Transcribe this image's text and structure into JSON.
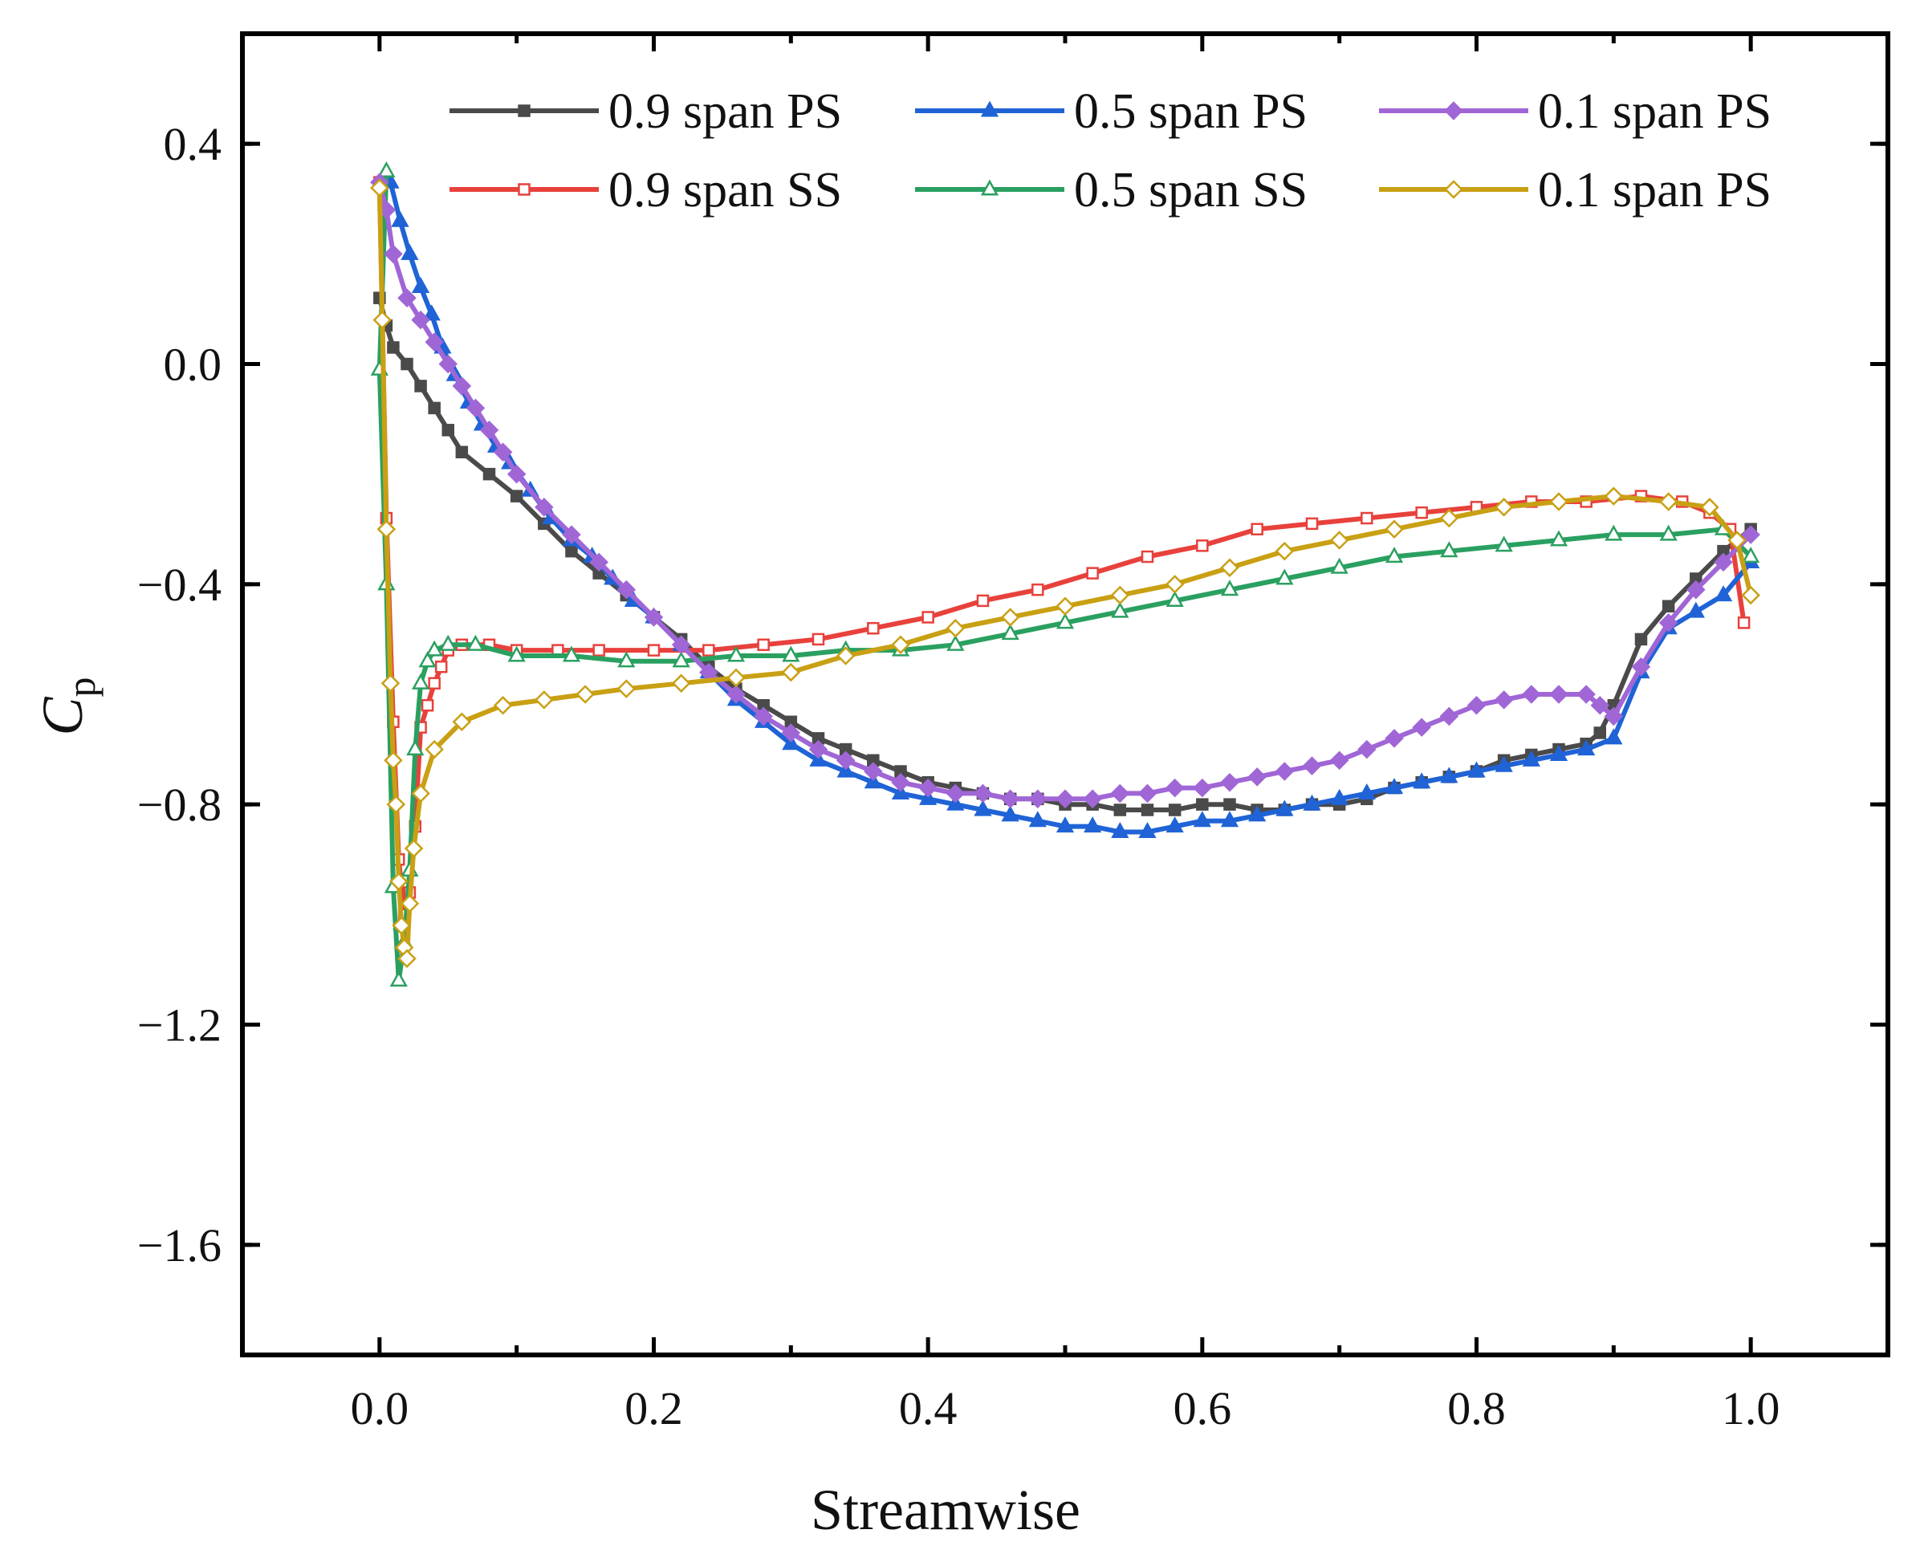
{
  "chart_data": {
    "type": "line",
    "xlabel": "Streamwise",
    "ylabel": "C",
    "ylabel_sub": "p",
    "xlim": [
      -0.1,
      1.1
    ],
    "ylim": [
      -1.8,
      0.6
    ],
    "xticks": [
      0.0,
      0.2,
      0.4,
      0.6,
      0.8,
      1.0
    ],
    "xtick_labels": [
      "0.0",
      "0.2",
      "0.4",
      "0.6",
      "0.8",
      "1.0"
    ],
    "yticks": [
      -1.6,
      -1.2,
      -0.8,
      -0.4,
      0.0,
      0.4
    ],
    "ytick_labels": [
      "−1.6",
      "−1.2",
      "−0.8",
      "−0.4",
      "0.0",
      "0.4"
    ],
    "grid": false,
    "legend_position": "top-right",
    "series": [
      {
        "name": "0.9 span PS",
        "color": "#4a4a4a",
        "marker": "square",
        "filled": true,
        "x": [
          0.0,
          0.005,
          0.01,
          0.02,
          0.03,
          0.04,
          0.05,
          0.06,
          0.08,
          0.1,
          0.12,
          0.14,
          0.16,
          0.18,
          0.2,
          0.22,
          0.24,
          0.26,
          0.28,
          0.3,
          0.32,
          0.34,
          0.36,
          0.38,
          0.4,
          0.42,
          0.44,
          0.46,
          0.48,
          0.5,
          0.52,
          0.54,
          0.56,
          0.58,
          0.6,
          0.62,
          0.64,
          0.66,
          0.68,
          0.7,
          0.72,
          0.74,
          0.76,
          0.78,
          0.8,
          0.82,
          0.84,
          0.86,
          0.88,
          0.89,
          0.9,
          0.92,
          0.94,
          0.96,
          0.98,
          1.0
        ],
        "y": [
          0.12,
          0.07,
          0.03,
          0.0,
          -0.04,
          -0.08,
          -0.12,
          -0.16,
          -0.2,
          -0.24,
          -0.29,
          -0.34,
          -0.38,
          -0.42,
          -0.46,
          -0.5,
          -0.55,
          -0.59,
          -0.62,
          -0.65,
          -0.68,
          -0.7,
          -0.72,
          -0.74,
          -0.76,
          -0.77,
          -0.78,
          -0.79,
          -0.79,
          -0.8,
          -0.8,
          -0.81,
          -0.81,
          -0.81,
          -0.8,
          -0.8,
          -0.81,
          -0.81,
          -0.8,
          -0.8,
          -0.79,
          -0.77,
          -0.76,
          -0.75,
          -0.74,
          -0.72,
          -0.71,
          -0.7,
          -0.69,
          -0.67,
          -0.62,
          -0.5,
          -0.44,
          -0.39,
          -0.34,
          -0.3
        ]
      },
      {
        "name": "0.9 span SS",
        "color": "#e8413c",
        "marker": "square",
        "filled": false,
        "x": [
          0.0,
          0.005,
          0.01,
          0.014,
          0.018,
          0.022,
          0.026,
          0.03,
          0.035,
          0.04,
          0.045,
          0.05,
          0.06,
          0.08,
          0.1,
          0.13,
          0.16,
          0.2,
          0.24,
          0.28,
          0.32,
          0.36,
          0.4,
          0.44,
          0.48,
          0.52,
          0.56,
          0.6,
          0.64,
          0.68,
          0.72,
          0.76,
          0.8,
          0.84,
          0.88,
          0.92,
          0.95,
          0.97,
          0.985,
          0.995
        ],
        "y": [
          0.33,
          -0.28,
          -0.65,
          -0.9,
          -1.0,
          -0.96,
          -0.84,
          -0.66,
          -0.62,
          -0.58,
          -0.55,
          -0.52,
          -0.51,
          -0.51,
          -0.52,
          -0.52,
          -0.52,
          -0.52,
          -0.52,
          -0.51,
          -0.5,
          -0.48,
          -0.46,
          -0.43,
          -0.41,
          -0.38,
          -0.35,
          -0.33,
          -0.3,
          -0.29,
          -0.28,
          -0.27,
          -0.26,
          -0.25,
          -0.25,
          -0.24,
          -0.25,
          -0.27,
          -0.3,
          -0.47
        ]
      },
      {
        "name": "0.5 span PS",
        "color": "#1f63d6",
        "marker": "triangle",
        "filled": true,
        "x": [
          0.008,
          0.015,
          0.022,
          0.03,
          0.038,
          0.046,
          0.055,
          0.065,
          0.075,
          0.085,
          0.095,
          0.11,
          0.125,
          0.14,
          0.155,
          0.17,
          0.185,
          0.2,
          0.22,
          0.24,
          0.26,
          0.28,
          0.3,
          0.32,
          0.34,
          0.36,
          0.38,
          0.4,
          0.42,
          0.44,
          0.46,
          0.48,
          0.5,
          0.52,
          0.54,
          0.56,
          0.58,
          0.6,
          0.62,
          0.64,
          0.66,
          0.68,
          0.7,
          0.72,
          0.74,
          0.76,
          0.78,
          0.8,
          0.82,
          0.84,
          0.86,
          0.88,
          0.9,
          0.92,
          0.94,
          0.96,
          0.98,
          1.0
        ],
        "y": [
          0.33,
          0.26,
          0.2,
          0.14,
          0.09,
          0.03,
          -0.02,
          -0.07,
          -0.11,
          -0.15,
          -0.18,
          -0.23,
          -0.28,
          -0.32,
          -0.35,
          -0.39,
          -0.43,
          -0.46,
          -0.51,
          -0.56,
          -0.61,
          -0.65,
          -0.69,
          -0.72,
          -0.74,
          -0.76,
          -0.78,
          -0.79,
          -0.8,
          -0.81,
          -0.82,
          -0.83,
          -0.84,
          -0.84,
          -0.85,
          -0.85,
          -0.84,
          -0.83,
          -0.83,
          -0.82,
          -0.81,
          -0.8,
          -0.79,
          -0.78,
          -0.77,
          -0.76,
          -0.75,
          -0.74,
          -0.73,
          -0.72,
          -0.71,
          -0.7,
          -0.68,
          -0.56,
          -0.48,
          -0.45,
          -0.42,
          -0.36
        ]
      },
      {
        "name": "0.5 span SS",
        "color": "#2aa060",
        "marker": "triangle",
        "filled": false,
        "x": [
          0.005,
          0.0,
          0.005,
          0.01,
          0.014,
          0.018,
          0.022,
          0.026,
          0.03,
          0.035,
          0.04,
          0.05,
          0.07,
          0.1,
          0.14,
          0.18,
          0.22,
          0.26,
          0.3,
          0.34,
          0.38,
          0.42,
          0.46,
          0.5,
          0.54,
          0.58,
          0.62,
          0.66,
          0.7,
          0.74,
          0.78,
          0.82,
          0.86,
          0.9,
          0.94,
          0.98,
          1.0
        ],
        "y": [
          0.35,
          -0.01,
          -0.4,
          -0.95,
          -1.12,
          -1.05,
          -0.92,
          -0.7,
          -0.58,
          -0.54,
          -0.52,
          -0.51,
          -0.51,
          -0.53,
          -0.53,
          -0.54,
          -0.54,
          -0.53,
          -0.53,
          -0.52,
          -0.52,
          -0.51,
          -0.49,
          -0.47,
          -0.45,
          -0.43,
          -0.41,
          -0.39,
          -0.37,
          -0.35,
          -0.34,
          -0.33,
          -0.32,
          -0.31,
          -0.31,
          -0.3,
          -0.35
        ]
      },
      {
        "name": "0.1 span PS",
        "color": "#a066d6",
        "marker": "diamond",
        "filled": true,
        "x": [
          0.0,
          0.005,
          0.01,
          0.02,
          0.03,
          0.04,
          0.05,
          0.06,
          0.07,
          0.08,
          0.09,
          0.1,
          0.12,
          0.14,
          0.16,
          0.18,
          0.2,
          0.22,
          0.24,
          0.26,
          0.28,
          0.3,
          0.32,
          0.34,
          0.36,
          0.38,
          0.4,
          0.42,
          0.44,
          0.46,
          0.48,
          0.5,
          0.52,
          0.54,
          0.56,
          0.58,
          0.6,
          0.62,
          0.64,
          0.66,
          0.68,
          0.7,
          0.72,
          0.74,
          0.76,
          0.78,
          0.8,
          0.82,
          0.84,
          0.86,
          0.88,
          0.89,
          0.9,
          0.92,
          0.94,
          0.96,
          0.98,
          1.0
        ],
        "y": [
          0.33,
          0.28,
          0.2,
          0.12,
          0.08,
          0.04,
          0.0,
          -0.04,
          -0.08,
          -0.12,
          -0.16,
          -0.2,
          -0.26,
          -0.31,
          -0.36,
          -0.41,
          -0.46,
          -0.51,
          -0.56,
          -0.6,
          -0.64,
          -0.67,
          -0.7,
          -0.72,
          -0.74,
          -0.76,
          -0.77,
          -0.78,
          -0.78,
          -0.79,
          -0.79,
          -0.79,
          -0.79,
          -0.78,
          -0.78,
          -0.77,
          -0.77,
          -0.76,
          -0.75,
          -0.74,
          -0.73,
          -0.72,
          -0.7,
          -0.68,
          -0.66,
          -0.64,
          -0.62,
          -0.61,
          -0.6,
          -0.6,
          -0.6,
          -0.62,
          -0.64,
          -0.55,
          -0.47,
          -0.41,
          -0.36,
          -0.31
        ]
      },
      {
        "name": "0.1 span PS",
        "color": "#c9a013",
        "marker": "diamond",
        "filled": false,
        "x": [
          0.0,
          0.002,
          0.005,
          0.008,
          0.01,
          0.012,
          0.014,
          0.016,
          0.018,
          0.02,
          0.022,
          0.025,
          0.03,
          0.04,
          0.06,
          0.09,
          0.12,
          0.15,
          0.18,
          0.22,
          0.26,
          0.3,
          0.34,
          0.38,
          0.42,
          0.46,
          0.5,
          0.54,
          0.58,
          0.62,
          0.66,
          0.7,
          0.74,
          0.78,
          0.82,
          0.86,
          0.9,
          0.94,
          0.97,
          0.99,
          1.0
        ],
        "y": [
          0.32,
          0.08,
          -0.3,
          -0.58,
          -0.72,
          -0.8,
          -0.94,
          -1.02,
          -1.06,
          -1.08,
          -0.98,
          -0.88,
          -0.78,
          -0.7,
          -0.65,
          -0.62,
          -0.61,
          -0.6,
          -0.59,
          -0.58,
          -0.57,
          -0.56,
          -0.53,
          -0.51,
          -0.48,
          -0.46,
          -0.44,
          -0.42,
          -0.4,
          -0.37,
          -0.34,
          -0.32,
          -0.3,
          -0.28,
          -0.26,
          -0.25,
          -0.24,
          -0.25,
          -0.26,
          -0.32,
          -0.42
        ]
      }
    ]
  }
}
